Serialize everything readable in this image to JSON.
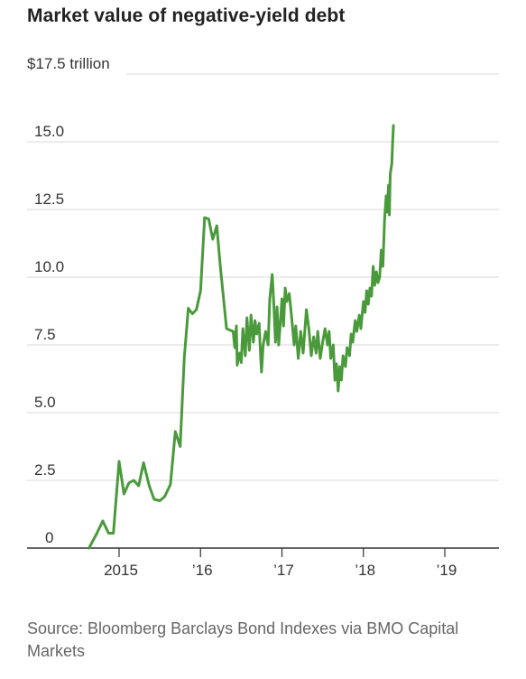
{
  "chart_data": {
    "type": "line",
    "title": "Market value of negative-yield debt",
    "ylabel": "$17.5 trillion",
    "xlabel": "",
    "ylim": [
      0,
      17.5
    ],
    "xlim": [
      2014.5,
      2019.6
    ],
    "yticks": [
      0,
      2.5,
      5.0,
      7.5,
      10.0,
      12.5,
      15.0
    ],
    "ytick_labels": [
      "0",
      "2.5",
      "5.0",
      "7.5",
      "10.0",
      "12.5",
      "15.0"
    ],
    "top_tick_label": "$17.5 trillion",
    "xticks": [
      2015,
      2016,
      2017,
      2018,
      2019
    ],
    "xtick_labels": [
      "2015",
      "’16",
      "’17",
      "’18",
      "’19"
    ],
    "grid": true,
    "color": "#4a9a3c",
    "series": [
      {
        "values": [
          [
            2014.63,
            0.0
          ],
          [
            2014.72,
            0.5
          ],
          [
            2014.8,
            1.0
          ],
          [
            2014.87,
            0.55
          ],
          [
            2014.93,
            0.55
          ],
          [
            2015.0,
            3.2
          ],
          [
            2015.06,
            2.0
          ],
          [
            2015.12,
            2.4
          ],
          [
            2015.18,
            2.5
          ],
          [
            2015.24,
            2.3
          ],
          [
            2015.3,
            3.15
          ],
          [
            2015.37,
            2.3
          ],
          [
            2015.43,
            1.8
          ],
          [
            2015.5,
            1.75
          ],
          [
            2015.56,
            1.9
          ],
          [
            2015.63,
            2.35
          ],
          [
            2015.69,
            4.3
          ],
          [
            2015.75,
            3.75
          ],
          [
            2015.8,
            7.0
          ],
          [
            2015.85,
            8.85
          ],
          [
            2015.9,
            8.65
          ],
          [
            2015.95,
            8.8
          ],
          [
            2016.0,
            9.5
          ],
          [
            2016.05,
            12.2
          ],
          [
            2016.1,
            12.15
          ],
          [
            2016.15,
            11.4
          ],
          [
            2016.2,
            11.9
          ],
          [
            2016.24,
            10.5
          ],
          [
            2016.28,
            9.3
          ],
          [
            2016.32,
            8.1
          ],
          [
            2016.4,
            8.0
          ],
          [
            2016.42,
            7.4
          ],
          [
            2016.44,
            8.2
          ],
          [
            2016.45,
            6.75
          ],
          [
            2016.48,
            7.2
          ],
          [
            2016.5,
            6.85
          ],
          [
            2016.52,
            8.1
          ],
          [
            2016.55,
            7.1
          ],
          [
            2016.57,
            8.5
          ],
          [
            2016.6,
            7.3
          ],
          [
            2016.62,
            8.6
          ],
          [
            2016.65,
            7.6
          ],
          [
            2016.67,
            8.4
          ],
          [
            2016.69,
            7.9
          ],
          [
            2016.72,
            8.3
          ],
          [
            2016.74,
            7.0
          ],
          [
            2016.75,
            6.5
          ],
          [
            2016.77,
            7.5
          ],
          [
            2016.8,
            8.0
          ],
          [
            2016.83,
            7.5
          ],
          [
            2016.85,
            9.2
          ],
          [
            2016.88,
            10.1
          ],
          [
            2016.9,
            9.0
          ],
          [
            2016.92,
            7.6
          ],
          [
            2016.94,
            8.9
          ],
          [
            2016.96,
            7.5
          ],
          [
            2016.98,
            8.3
          ],
          [
            2017.0,
            9.2
          ],
          [
            2017.02,
            8.2
          ],
          [
            2017.04,
            9.6
          ],
          [
            2017.06,
            9.1
          ],
          [
            2017.09,
            9.4
          ],
          [
            2017.12,
            8.5
          ],
          [
            2017.15,
            7.5
          ],
          [
            2017.17,
            8.2
          ],
          [
            2017.2,
            7.0
          ],
          [
            2017.23,
            8.0
          ],
          [
            2017.26,
            7.2
          ],
          [
            2017.3,
            8.8
          ],
          [
            2017.33,
            8.1
          ],
          [
            2017.36,
            7.1
          ],
          [
            2017.39,
            7.8
          ],
          [
            2017.42,
            7.2
          ],
          [
            2017.44,
            8.0
          ],
          [
            2017.47,
            7.0
          ],
          [
            2017.5,
            7.6
          ],
          [
            2017.53,
            8.1
          ],
          [
            2017.56,
            7.5
          ],
          [
            2017.58,
            8.0
          ],
          [
            2017.6,
            7.0
          ],
          [
            2017.63,
            7.5
          ],
          [
            2017.65,
            6.2
          ],
          [
            2017.67,
            6.8
          ],
          [
            2017.69,
            5.8
          ],
          [
            2017.71,
            6.7
          ],
          [
            2017.73,
            6.2
          ],
          [
            2017.75,
            7.1
          ],
          [
            2017.78,
            6.7
          ],
          [
            2017.8,
            7.4
          ],
          [
            2017.83,
            7.1
          ],
          [
            2017.85,
            7.9
          ],
          [
            2017.87,
            7.6
          ],
          [
            2017.9,
            8.4
          ],
          [
            2017.92,
            8.0
          ],
          [
            2017.95,
            8.6
          ],
          [
            2017.97,
            8.1
          ],
          [
            2018.0,
            9.1
          ],
          [
            2018.02,
            8.7
          ],
          [
            2018.04,
            9.5
          ],
          [
            2018.06,
            9.0
          ],
          [
            2018.08,
            9.6
          ],
          [
            2018.1,
            9.3
          ],
          [
            2018.12,
            10.4
          ],
          [
            2018.14,
            9.7
          ],
          [
            2018.16,
            10.2
          ],
          [
            2018.18,
            9.8
          ],
          [
            2018.2,
            10.0
          ],
          [
            2018.22,
            11.0
          ],
          [
            2018.24,
            10.4
          ],
          [
            2018.26,
            12.1
          ],
          [
            2018.28,
            13.0
          ],
          [
            2018.29,
            12.4
          ],
          [
            2018.31,
            13.4
          ],
          [
            2018.32,
            12.3
          ],
          [
            2018.33,
            13.8
          ],
          [
            2018.35,
            14.2
          ],
          [
            2018.36,
            15.0
          ],
          [
            2018.37,
            15.6
          ]
        ]
      }
    ]
  },
  "source_text": "Source: Bloomberg Barclays Bond Indexes via BMO Capital Markets"
}
